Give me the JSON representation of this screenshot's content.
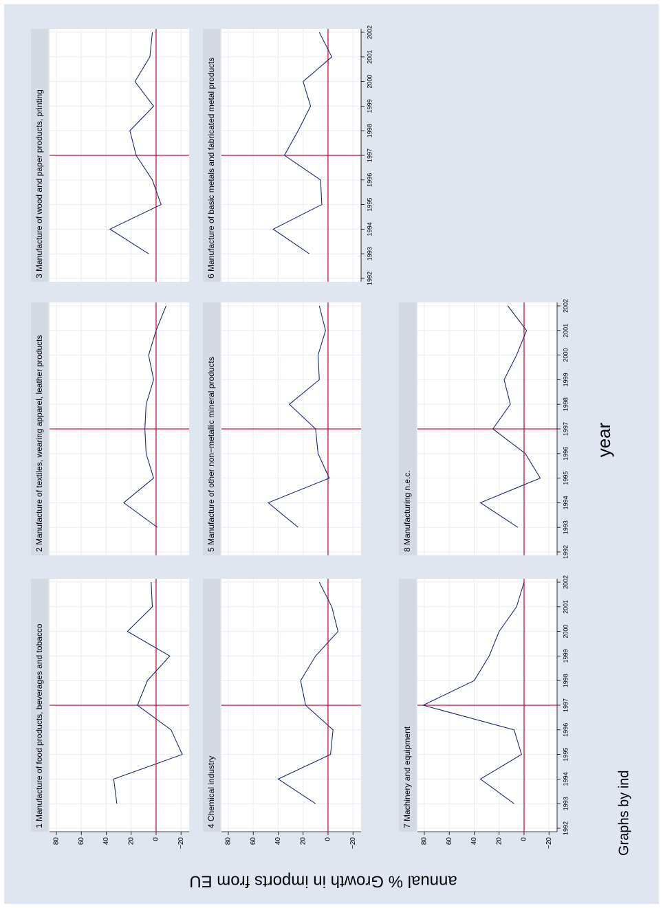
{
  "chart_data": {
    "type": "line",
    "x": [
      1993,
      1994,
      1995,
      1996,
      1997,
      1998,
      1999,
      2000,
      2001,
      2002
    ],
    "xlim": [
      1991.86,
      2002.14
    ],
    "xticks": [
      1992,
      1993,
      1994,
      1995,
      1996,
      1997,
      1998,
      1999,
      2000,
      2001,
      2002
    ],
    "ylim": [
      -26.5,
      85.5
    ],
    "yticks": [
      {
        "value": -20,
        "label": "−20"
      },
      0,
      20,
      40,
      60,
      80
    ],
    "xlabel": "year",
    "ylabel": "annual % Growth in imports from EU",
    "note": "Graphs by ind",
    "xline": 1997,
    "yline": 0,
    "color": "#1a2b6d",
    "reference_color": "#c8103c",
    "grid": true,
    "series": [
      {
        "name": "1 Manufacture of food products, beverages and tobacco",
        "values": [
          31.5,
          34,
          -21,
          -12,
          15,
          7,
          -11,
          23,
          3,
          4
        ]
      },
      {
        "name": "2 Manufacture of textiles, wearing apparel, leather products",
        "values": [
          -1,
          26,
          2,
          8,
          9,
          8,
          2,
          6,
          0,
          -8
        ]
      },
      {
        "name": "3 Manufacture of wood and paper products, printing",
        "values": [
          6,
          37,
          -4,
          3,
          16,
          21,
          2,
          17,
          5,
          3
        ]
      },
      {
        "name": "4 Chemical industry",
        "values": [
          10,
          40,
          -2,
          -4,
          18,
          22,
          10,
          -8,
          -3,
          7
        ]
      },
      {
        "name": "5 Manufacture of other non−metallic mineral products",
        "values": [
          24,
          48,
          -1,
          8,
          10,
          31,
          7,
          8,
          2,
          7
        ]
      },
      {
        "name": "6 Manufacture of basic metals and fabricated metal products",
        "values": [
          15,
          44,
          5,
          6,
          35,
          24,
          14,
          20,
          -3,
          7
        ]
      },
      {
        "name": "7 Machinery and equipment",
        "values": [
          8,
          35,
          2,
          8,
          81,
          40,
          28,
          20,
          6,
          0
        ]
      },
      {
        "name": "8 Manufacturing n.e.c.",
        "values": [
          5,
          35,
          -13,
          -1,
          25,
          11,
          16,
          6,
          -2,
          13
        ]
      }
    ]
  }
}
